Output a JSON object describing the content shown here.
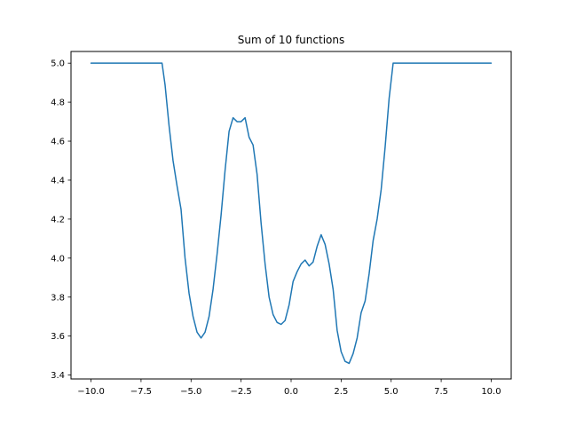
{
  "chart_data": {
    "type": "line",
    "title": "Sum of 10 functions",
    "xlabel": "",
    "ylabel": "",
    "xlim": [
      -11.0,
      11.0
    ],
    "ylim": [
      3.38,
      5.06
    ],
    "xticks": [
      -10.0,
      -7.5,
      -5.0,
      -2.5,
      0.0,
      2.5,
      5.0,
      7.5,
      10.0
    ],
    "xtick_labels": [
      "−10.0",
      "−7.5",
      "−5.0",
      "−2.5",
      "0.0",
      "2.5",
      "5.0",
      "7.5",
      "10.0"
    ],
    "yticks": [
      3.4,
      3.6,
      3.8,
      4.0,
      4.2,
      4.4,
      4.6,
      4.8,
      5.0
    ],
    "ytick_labels": [
      "3.4",
      "3.6",
      "3.8",
      "4.0",
      "4.2",
      "4.4",
      "4.6",
      "4.8",
      "5.0"
    ],
    "grid": false,
    "series": [
      {
        "color": "#1f77b4",
        "x": [
          -10.0,
          -8.0,
          -6.45,
          -6.3,
          -6.1,
          -5.9,
          -5.7,
          -5.5,
          -5.3,
          -5.1,
          -4.9,
          -4.7,
          -4.5,
          -4.3,
          -4.1,
          -3.9,
          -3.7,
          -3.5,
          -3.3,
          -3.1,
          -2.9,
          -2.7,
          -2.5,
          -2.3,
          -2.1,
          -1.9,
          -1.7,
          -1.5,
          -1.3,
          -1.1,
          -0.9,
          -0.7,
          -0.5,
          -0.3,
          -0.1,
          0.1,
          0.3,
          0.5,
          0.7,
          0.9,
          1.1,
          1.3,
          1.5,
          1.7,
          1.9,
          2.1,
          2.3,
          2.5,
          2.7,
          2.9,
          3.1,
          3.3,
          3.5,
          3.7,
          3.9,
          4.1,
          4.3,
          4.5,
          4.7,
          4.9,
          5.1,
          5.3,
          7.0,
          10.0
        ],
        "y": [
          5.0,
          5.0,
          5.0,
          4.89,
          4.68,
          4.5,
          4.37,
          4.25,
          4.0,
          3.82,
          3.7,
          3.62,
          3.59,
          3.62,
          3.7,
          3.84,
          4.02,
          4.22,
          4.45,
          4.65,
          4.72,
          4.7,
          4.7,
          4.72,
          4.62,
          4.58,
          4.43,
          4.18,
          3.97,
          3.8,
          3.71,
          3.67,
          3.66,
          3.68,
          3.76,
          3.88,
          3.93,
          3.97,
          3.99,
          3.96,
          3.98,
          4.06,
          4.12,
          4.07,
          3.97,
          3.84,
          3.63,
          3.52,
          3.47,
          3.46,
          3.51,
          3.59,
          3.72,
          3.78,
          3.92,
          4.09,
          4.2,
          4.35,
          4.57,
          4.82,
          5.0,
          5.0,
          5.0,
          5.0
        ]
      }
    ]
  }
}
